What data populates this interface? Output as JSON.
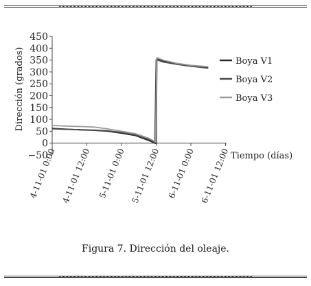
{
  "caption": "Figura 7. Dirección del oleaje.",
  "chart_data": {
    "type": "line",
    "title": "",
    "xlabel": "Tiempo (días)",
    "ylabel": "Dirección (grados)",
    "ylim": [
      -50,
      450
    ],
    "yticks": [
      450,
      400,
      350,
      300,
      250,
      200,
      150,
      100,
      50,
      0,
      -50
    ],
    "xlim": [
      0,
      2.0
    ],
    "xticks": [
      {
        "x": 0.0,
        "label": "4-11-01 0:00"
      },
      {
        "x": 0.5,
        "label": "4-11-01 12:00"
      },
      {
        "x": 1.0,
        "label": "5-11-01 0:00"
      },
      {
        "x": 1.5,
        "label": "5-11-01 12:00"
      },
      {
        "x": 2.0,
        "label": "6-11-01 0:00"
      },
      {
        "x": 2.5,
        "label": "6-11-01 12:00"
      }
    ],
    "legend_position": "right",
    "series": [
      {
        "name": "Boya V1",
        "color": "#2b2b2b",
        "x": [
          0.0,
          0.2,
          0.4,
          0.6,
          0.8,
          1.0,
          1.2,
          1.4,
          1.5,
          1.51,
          1.6,
          1.8,
          2.0,
          2.25
        ],
        "y": [
          62,
          59,
          56,
          54,
          50,
          42,
          32,
          10,
          -2,
          355,
          345,
          335,
          326,
          318
        ]
      },
      {
        "name": "Boya V2",
        "color": "#4a4a4a",
        "x": [
          0.0,
          0.2,
          0.4,
          0.6,
          0.8,
          1.0,
          1.2,
          1.4,
          1.48,
          1.5,
          1.6,
          1.8,
          2.0,
          2.25
        ],
        "y": [
          60,
          58,
          57,
          55,
          52,
          45,
          35,
          15,
          5,
          352,
          342,
          332,
          324,
          316
        ]
      },
      {
        "name": "Boya V3",
        "color": "#9a9a9a",
        "x": [
          0.0,
          0.2,
          0.4,
          0.6,
          0.8,
          1.0,
          1.2,
          1.4,
          1.49,
          1.51,
          1.6,
          1.8,
          2.0,
          2.25
        ],
        "y": [
          75,
          72,
          70,
          68,
          60,
          50,
          40,
          20,
          5,
          360,
          350,
          336,
          328,
          322
        ]
      }
    ]
  }
}
